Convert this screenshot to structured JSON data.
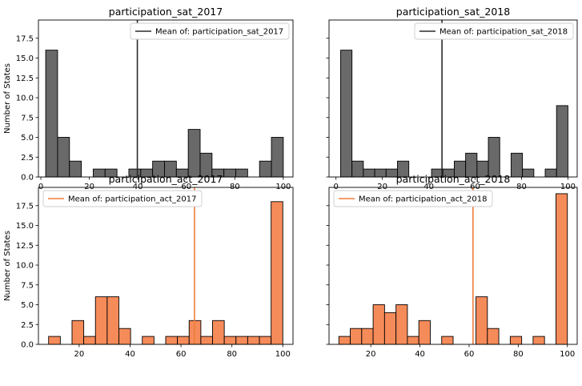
{
  "chart_data": [
    {
      "type": "bar",
      "title": "participation_sat_2017",
      "ylabel": "Number of States",
      "xlim": [
        -1,
        104
      ],
      "ylim": [
        0,
        19.8
      ],
      "xticks": [
        0,
        20,
        40,
        60,
        80,
        100
      ],
      "yticks": [
        0.0,
        2.5,
        5.0,
        7.5,
        10.0,
        12.5,
        15.0,
        17.5
      ],
      "show_yticklabels": true,
      "show_xticklabels": true,
      "bin_start": 2,
      "bin_width": 4.9,
      "values": [
        16,
        5,
        2,
        0,
        1,
        1,
        0,
        1,
        1,
        2,
        2,
        1,
        6,
        3,
        1,
        1,
        1,
        0,
        2,
        5
      ],
      "mean": 39.8,
      "legend": "Mean of: participation_sat_2017",
      "legend_loc": "upper right",
      "bar_color": "#696969",
      "mean_color": "#2b2b2b"
    },
    {
      "type": "bar",
      "title": "participation_sat_2018",
      "ylabel": "",
      "xlim": [
        -3,
        104
      ],
      "ylim": [
        0,
        19.8
      ],
      "xticks": [
        0,
        20,
        40,
        60,
        80,
        100
      ],
      "yticks": [
        0.0,
        2.5,
        5.0,
        7.5,
        10.0,
        12.5,
        15.0,
        17.5
      ],
      "show_yticklabels": false,
      "show_xticklabels": true,
      "bin_start": 2,
      "bin_width": 4.9,
      "values": [
        16,
        2,
        1,
        1,
        1,
        2,
        0,
        0,
        1,
        1,
        2,
        3,
        2,
        5,
        0,
        3,
        1,
        0,
        1,
        9
      ],
      "mean": 45.7,
      "legend": "Mean of: participation_sat_2018",
      "legend_loc": "upper right",
      "bar_color": "#696969",
      "mean_color": "#2b2b2b"
    },
    {
      "type": "bar",
      "title": "participation_act_2017",
      "ylabel": "Number of States",
      "xlim": [
        4,
        104
      ],
      "ylim": [
        0,
        19.8
      ],
      "xticks": [
        20,
        40,
        60,
        80,
        100
      ],
      "yticks": [
        0.0,
        2.5,
        5.0,
        7.5,
        10.0,
        12.5,
        15.0,
        17.5
      ],
      "show_yticklabels": true,
      "show_xticklabels": true,
      "bin_start": 8,
      "bin_width": 4.6,
      "values": [
        1,
        0,
        3,
        1,
        6,
        6,
        2,
        0,
        1,
        0,
        1,
        1,
        3,
        1,
        3,
        1,
        1,
        1,
        1,
        18
      ],
      "mean": 65.3,
      "legend": "Mean of: participation_act_2017",
      "legend_loc": "upper left",
      "bar_color": "#f68b5a",
      "mean_color": "#ee7d3a"
    },
    {
      "type": "bar",
      "title": "participation_act_2018",
      "ylabel": "",
      "xlim": [
        3,
        104
      ],
      "ylim": [
        0,
        19.8
      ],
      "xticks": [
        20,
        40,
        60,
        80,
        100
      ],
      "yticks": [
        0.0,
        2.5,
        5.0,
        7.5,
        10.0,
        12.5,
        15.0,
        17.5
      ],
      "show_yticklabels": false,
      "show_xticklabels": true,
      "bin_start": 7,
      "bin_width": 4.65,
      "values": [
        1,
        2,
        2,
        5,
        4,
        5,
        1,
        3,
        0,
        1,
        0,
        0,
        6,
        2,
        0,
        1,
        0,
        1,
        0,
        19
      ],
      "mean": 61.6,
      "legend": "Mean of: participation_act_2018",
      "legend_loc": "upper left",
      "bar_color": "#f68b5a",
      "mean_color": "#ee7d3a"
    }
  ]
}
